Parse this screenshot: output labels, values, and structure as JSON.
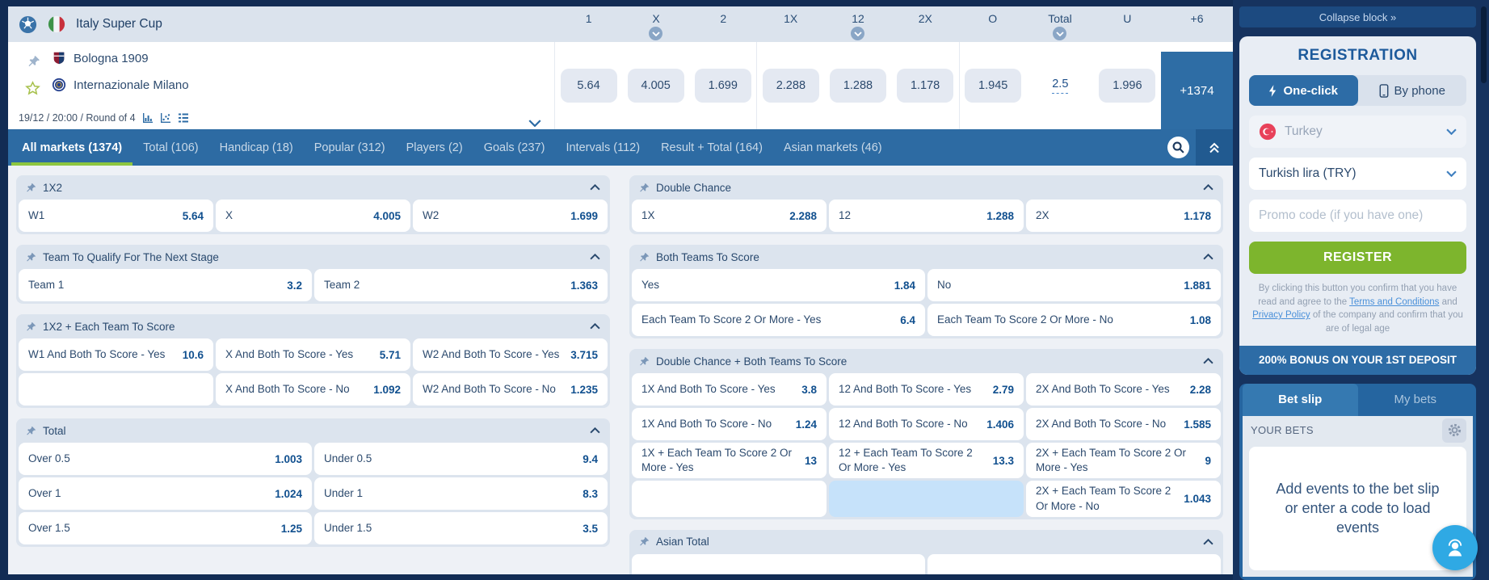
{
  "colors": {
    "accent_green": "#8dc63f",
    "register_green": "#7db52d",
    "primary_blue": "#2d6ba3",
    "dark_navy": "#16335f",
    "highlight_cell": "#c6e2fa",
    "link_blue": "#4a90d9"
  },
  "icons": {
    "sport": "soccer-ball-icon",
    "league_flag": "italy-flag-icon",
    "pin": "pushpin-icon",
    "favorite": "star-icon",
    "expand": "chevron-down-icon",
    "search": "search-icon",
    "collapse_markets": "double-chevron-up-icon",
    "one_click": "lightning-icon",
    "by_phone": "phone-icon",
    "country_flag": "turkey-flag-icon",
    "settings": "gear-icon",
    "support": "support-chat-icon"
  },
  "league_header": {
    "title": "Italy Super Cup",
    "columns": [
      {
        "label": "1",
        "sort": false
      },
      {
        "label": "X",
        "sort": true
      },
      {
        "label": "2",
        "sort": false
      },
      {
        "label": "1X",
        "sort": false
      },
      {
        "label": "12",
        "sort": true
      },
      {
        "label": "2X",
        "sort": false
      },
      {
        "label": "O",
        "sort": false
      },
      {
        "label": "Total",
        "sort": true
      },
      {
        "label": "U",
        "sort": false
      },
      {
        "label": "+6",
        "sort": false
      }
    ]
  },
  "match": {
    "team1": "Bologna 1909",
    "team2": "Internazionale Milano",
    "meta": "19/12 / 20:00 / Round of 4",
    "odds": [
      {
        "value": "5.64"
      },
      {
        "value": "4.005"
      },
      {
        "value": "1.699"
      },
      {
        "value": "2.288"
      },
      {
        "value": "1.288"
      },
      {
        "value": "1.178"
      },
      {
        "value": "1.945"
      },
      {
        "value": "2.5",
        "style": "line"
      },
      {
        "value": "1.996"
      }
    ],
    "more": "+1374"
  },
  "market_tabs": [
    {
      "label": "All markets (1374)",
      "active": true
    },
    {
      "label": "Total (106)",
      "active": false
    },
    {
      "label": "Handicap (18)",
      "active": false
    },
    {
      "label": "Popular (312)",
      "active": false
    },
    {
      "label": "Players (2)",
      "active": false
    },
    {
      "label": "Goals (237)",
      "active": false
    },
    {
      "label": "Intervals (112)",
      "active": false
    },
    {
      "label": "Result + Total (164)",
      "active": false
    },
    {
      "label": "Asian markets (46)",
      "active": false
    }
  ],
  "markets": {
    "left": [
      {
        "title": "1X2",
        "cols": 3,
        "rows": [
          [
            {
              "label": "W1",
              "odds": "5.64"
            },
            {
              "label": "X",
              "odds": "4.005"
            },
            {
              "label": "W2",
              "odds": "1.699"
            }
          ]
        ]
      },
      {
        "title": "Team To Qualify For The Next Stage",
        "cols": 2,
        "rows": [
          [
            {
              "label": "Team 1",
              "odds": "3.2"
            },
            {
              "label": "Team 2",
              "odds": "1.363"
            }
          ]
        ]
      },
      {
        "title": "1X2 + Each Team To Score",
        "cols": 3,
        "rows": [
          [
            {
              "label": "W1 And Both To Score - Yes",
              "odds": "10.6"
            },
            {
              "label": "X And Both To Score - Yes",
              "odds": "5.71"
            },
            {
              "label": "W2 And Both To Score - Yes",
              "odds": "3.715"
            }
          ],
          [
            null,
            {
              "label": "X And Both To Score - No",
              "odds": "1.092"
            },
            {
              "label": "W2 And Both To Score - No",
              "odds": "1.235"
            }
          ]
        ]
      },
      {
        "title": "Total",
        "cols": 2,
        "rows": [
          [
            {
              "label": "Over 0.5",
              "odds": "1.003"
            },
            {
              "label": "Under 0.5",
              "odds": "9.4"
            }
          ],
          [
            {
              "label": "Over 1",
              "odds": "1.024"
            },
            {
              "label": "Under 1",
              "odds": "8.3"
            }
          ],
          [
            {
              "label": "Over 1.5",
              "odds": "1.25"
            },
            {
              "label": "Under 1.5",
              "odds": "3.5"
            }
          ]
        ]
      }
    ],
    "right": [
      {
        "title": "Double Chance",
        "cols": 3,
        "rows": [
          [
            {
              "label": "1X",
              "odds": "2.288"
            },
            {
              "label": "12",
              "odds": "1.288"
            },
            {
              "label": "2X",
              "odds": "1.178"
            }
          ]
        ]
      },
      {
        "title": "Both Teams To Score",
        "cols": 2,
        "rows": [
          [
            {
              "label": "Yes",
              "odds": "1.84"
            },
            {
              "label": "No",
              "odds": "1.881"
            }
          ],
          [
            {
              "label": "Each Team To Score 2 Or More - Yes",
              "odds": "6.4"
            },
            {
              "label": "Each Team To Score 2 Or More - No",
              "odds": "1.08"
            }
          ]
        ]
      },
      {
        "title": "Double Chance + Both Teams To Score",
        "cols": 3,
        "rows": [
          [
            {
              "label": "1X And Both To Score - Yes",
              "odds": "3.8"
            },
            {
              "label": "12 And Both To Score - Yes",
              "odds": "2.79"
            },
            {
              "label": "2X And Both To Score - Yes",
              "odds": "2.28"
            }
          ],
          [
            {
              "label": "1X And Both To Score - No",
              "odds": "1.24"
            },
            {
              "label": "12 And Both To Score - No",
              "odds": "1.406"
            },
            {
              "label": "2X And Both To Score - No",
              "odds": "1.585"
            }
          ],
          [
            {
              "label": "1X + Each Team To Score 2 Or More - Yes",
              "odds": "13"
            },
            {
              "label": "12 + Each Team To Score 2 Or More - Yes",
              "odds": "13.3"
            },
            {
              "label": "2X + Each Team To Score 2 Or More - Yes",
              "odds": "9"
            }
          ],
          [
            null,
            {
              "highlight": true
            },
            {
              "label": "2X + Each Team To Score 2 Or More - No",
              "odds": "1.043"
            }
          ]
        ]
      },
      {
        "title": "Asian Total",
        "cols": 2,
        "rows": [
          [
            {
              "label": "",
              "odds": ""
            },
            {
              "label": "",
              "odds": ""
            }
          ]
        ]
      }
    ]
  },
  "sidebar": {
    "collapse_label": "Collapse block »",
    "registration": {
      "title": "REGISTRATION",
      "tabs": [
        "One-click",
        "By phone"
      ],
      "country": "Turkey",
      "currency": "Turkish lira (TRY)",
      "promo_placeholder": "Promo code (if you have one)",
      "register_label": "REGISTER",
      "terms_prefix": "By clicking this button you confirm that you have read and agree to the ",
      "terms_link": "Terms and Conditions",
      "terms_mid": " and ",
      "privacy_link": "Privacy Policy",
      "terms_suffix": " of the company and confirm that you are of legal age",
      "bonus": "200% BONUS ON YOUR 1ST DEPOSIT"
    },
    "betslip": {
      "tabs": [
        "Bet slip",
        "My bets"
      ],
      "your_bets": "YOUR BETS",
      "empty_message": "Add events to the bet slip or enter a code to load events"
    }
  }
}
